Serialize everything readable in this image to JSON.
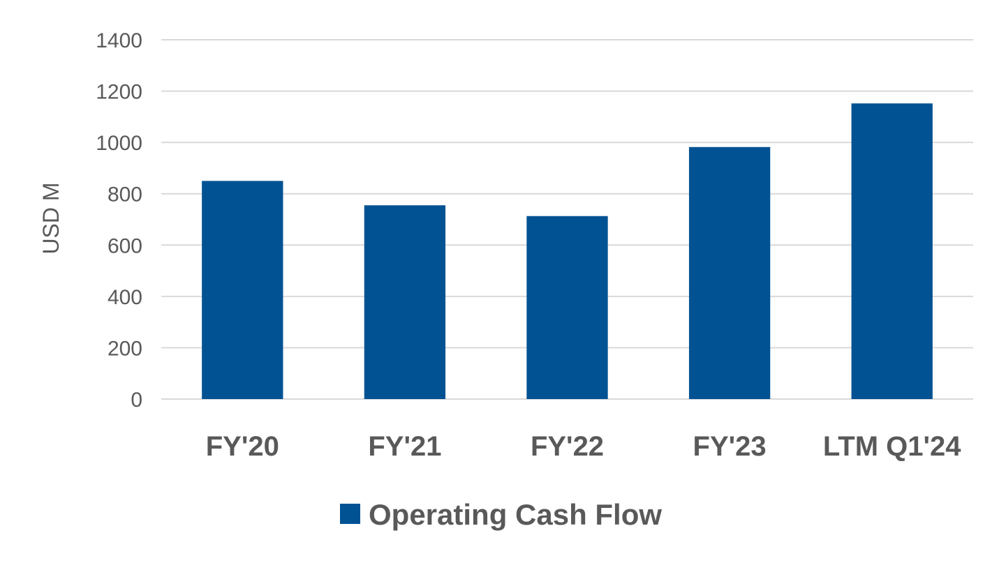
{
  "chart_data": {
    "type": "bar",
    "title": "",
    "xlabel": "",
    "ylabel": "USD M",
    "ylim": [
      0,
      1400
    ],
    "yticks": [
      0,
      200,
      400,
      600,
      800,
      1000,
      1200,
      1400
    ],
    "grid": true,
    "legend_position": "bottom",
    "categories": [
      "FY'20",
      "FY'21",
      "FY'22",
      "FY'23",
      "LTM Q1'24"
    ],
    "series": [
      {
        "name": "Operating Cash Flow",
        "color": "#005293",
        "values": [
          850,
          755,
          713,
          982,
          1152
        ]
      }
    ]
  }
}
